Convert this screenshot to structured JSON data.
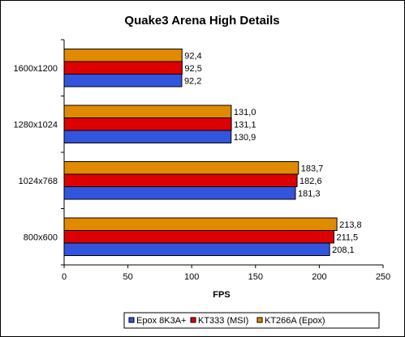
{
  "chart_data": {
    "type": "bar",
    "orientation": "horizontal",
    "title": "Quake3 Arena High Details",
    "xlabel": "FPS",
    "ylabel": "",
    "xlim": [
      0,
      250
    ],
    "xticks": [
      0,
      50,
      100,
      150,
      200,
      250
    ],
    "categories": [
      "1600x1200",
      "1280x1024",
      "1024x768",
      "800x600"
    ],
    "series": [
      {
        "name": "Epox 8K3A+",
        "color": "#3355dd",
        "values": [
          92.2,
          130.9,
          181.3,
          208.1
        ],
        "labels": [
          "92,2",
          "130,9",
          "181,3",
          "208,1"
        ]
      },
      {
        "name": "KT333 (MSI)",
        "color": "#dd0000",
        "values": [
          92.5,
          131.1,
          182.6,
          211.5
        ],
        "labels": [
          "92,5",
          "131,1",
          "182,6",
          "211,5"
        ]
      },
      {
        "name": "KT266A (Epox)",
        "color": "#e08a00",
        "values": [
          92.4,
          131.0,
          183.7,
          213.8
        ],
        "labels": [
          "92,4",
          "131,0",
          "183,7",
          "213,8"
        ]
      }
    ],
    "grid": false,
    "legend": "bottom"
  }
}
